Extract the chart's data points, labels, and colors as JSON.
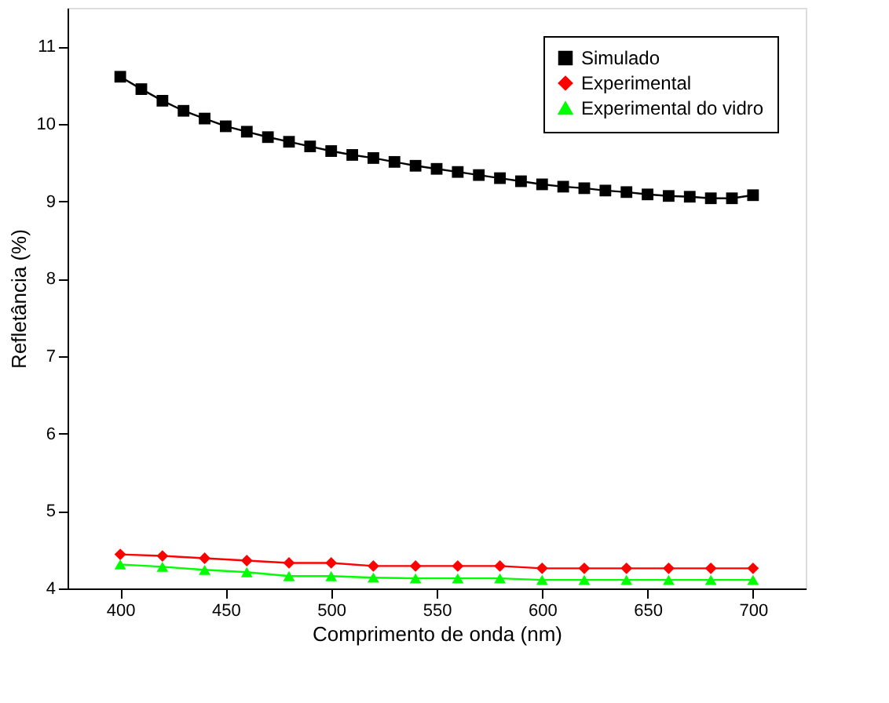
{
  "chart_data": {
    "type": "line",
    "xlabel": "Comprimento de onda (nm)",
    "ylabel": "Refletância (%)",
    "xlim": [
      375,
      725
    ],
    "ylim": [
      4,
      11.5
    ],
    "xticks": [
      400,
      450,
      500,
      550,
      600,
      650,
      700
    ],
    "yticks": [
      4,
      5,
      6,
      7,
      8,
      9,
      10,
      11
    ],
    "grid": false,
    "legend": "top right",
    "line_style": "solid",
    "series": [
      {
        "name": "Simulado",
        "color": "#000000",
        "marker": "square",
        "x": [
          400,
          410,
          420,
          430,
          440,
          450,
          460,
          470,
          480,
          490,
          500,
          510,
          520,
          530,
          540,
          550,
          560,
          570,
          580,
          590,
          600,
          610,
          620,
          630,
          640,
          650,
          660,
          670,
          680,
          690,
          700
        ],
        "values": [
          10.61,
          10.45,
          10.3,
          10.17,
          10.07,
          9.97,
          9.9,
          9.83,
          9.77,
          9.71,
          9.65,
          9.6,
          9.56,
          9.51,
          9.46,
          9.42,
          9.38,
          9.34,
          9.3,
          9.26,
          9.22,
          9.19,
          9.17,
          9.14,
          9.12,
          9.09,
          9.07,
          9.06,
          9.04,
          9.04,
          9.08
        ]
      },
      {
        "name": "Experimental",
        "color": "#ff0000",
        "marker": "diamond",
        "x": [
          400,
          420,
          440,
          460,
          480,
          500,
          520,
          540,
          560,
          580,
          600,
          620,
          640,
          660,
          680,
          700
        ],
        "values": [
          4.44,
          4.42,
          4.39,
          4.36,
          4.33,
          4.33,
          4.29,
          4.29,
          4.29,
          4.29,
          4.26,
          4.26,
          4.26,
          4.26,
          4.26,
          4.26
        ]
      },
      {
        "name": "Experimental do vidro",
        "color": "#00ff00",
        "marker": "triangle",
        "x": [
          400,
          420,
          440,
          460,
          480,
          500,
          520,
          540,
          560,
          580,
          600,
          620,
          640,
          660,
          680,
          700
        ],
        "values": [
          4.31,
          4.28,
          4.24,
          4.21,
          4.16,
          4.16,
          4.14,
          4.13,
          4.13,
          4.13,
          4.11,
          4.11,
          4.11,
          4.11,
          4.11,
          4.11
        ]
      }
    ]
  }
}
